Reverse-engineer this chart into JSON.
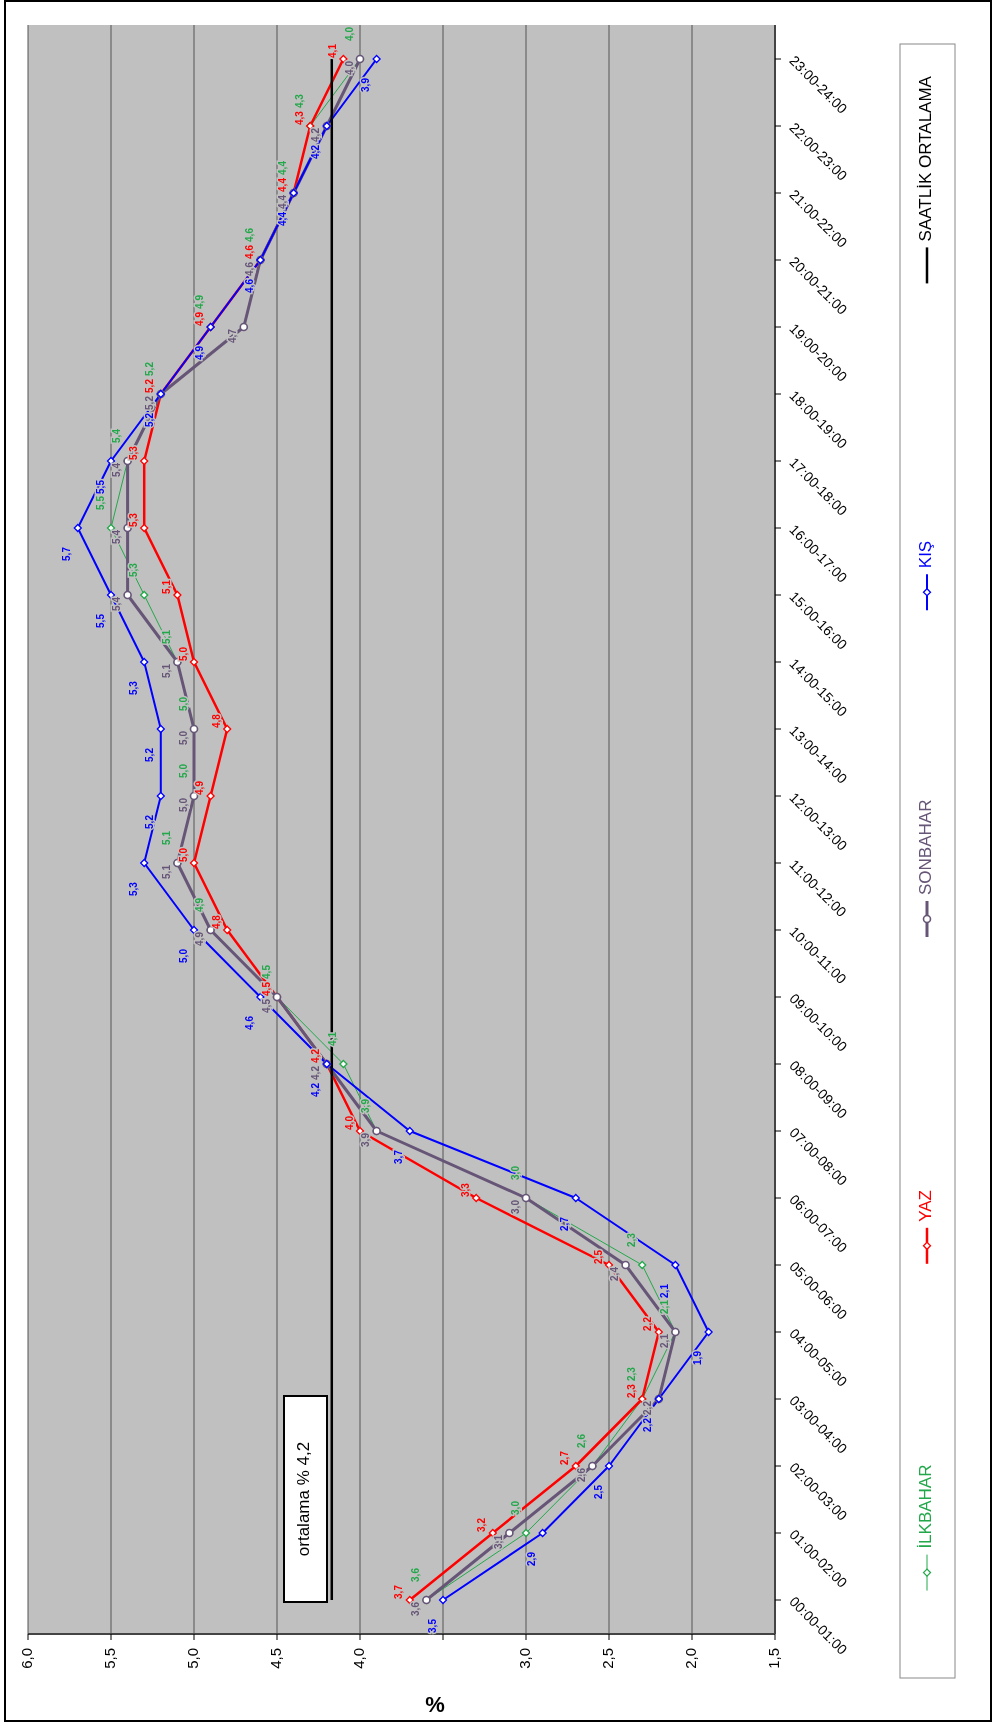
{
  "chart_data": {
    "type": "line",
    "orientation": "horizontal",
    "xlabel": "%",
    "categories": [
      "23:00-24:00",
      "22:00-23:00",
      "21:00-22:00",
      "20:00-21:00",
      "19:00-20:00",
      "18:00-19:00",
      "17:00-18:00",
      "16:00-17:00",
      "15:00-16:00",
      "14:00-15:00",
      "13:00-14:00",
      "12:00-13:00",
      "11:00-12:00",
      "10:00-11:00",
      "09:00-10:00",
      "08:00-09:00",
      "07:00-08:00",
      "06:00-07:00",
      "05:00-06:00",
      "04:00-05:00",
      "03:00-04:00",
      "02:00-03:00",
      "01:00-02:00",
      "00:00-01:00"
    ],
    "xlim": [
      6.0,
      1.5
    ],
    "xticks": [
      {
        "value": 6.0,
        "label": "6,0"
      },
      {
        "value": 5.5,
        "label": "5,5"
      },
      {
        "value": 5.0,
        "label": "5,0"
      },
      {
        "value": 4.5,
        "label": "4,5"
      },
      {
        "value": 4.0,
        "label": "4,0"
      },
      {
        "value": 3.5,
        "label": null
      },
      {
        "value": 3.0,
        "label": "3,0"
      },
      {
        "value": 2.5,
        "label": "2,5"
      },
      {
        "value": 2.0,
        "label": "2,0"
      },
      {
        "value": 1.5,
        "label": "1,5"
      }
    ],
    "grid": "x",
    "legend": "right",
    "annotations": [
      "ortalama % 4,2"
    ],
    "series": [
      {
        "name": "İLKBAHAR",
        "color": "#22a84a",
        "marker": "diamond",
        "values": [
          4.0,
          4.3,
          4.4,
          4.6,
          4.9,
          5.2,
          5.4,
          5.5,
          5.3,
          5.1,
          5.0,
          5.0,
          5.1,
          4.9,
          4.5,
          4.1,
          3.9,
          3.0,
          2.3,
          2.1,
          2.3,
          2.6,
          3.0,
          3.6
        ],
        "value_labels": [
          "4,0",
          "4,3",
          "4,4",
          "4,6",
          "4,9",
          "5,2",
          "5,4",
          "5,5",
          "5,3",
          "5,1",
          "5,0",
          "5,0",
          "5,1",
          "4,9",
          "4,5",
          "4,1",
          "3,9",
          "3,0",
          "2,3",
          "2,1",
          "2,3",
          "2,6",
          "3,0",
          "3,6"
        ]
      },
      {
        "name": "YAZ",
        "color": "#ff0000",
        "marker": "diamond",
        "values": [
          4.1,
          4.3,
          4.4,
          4.6,
          4.9,
          5.2,
          5.3,
          5.3,
          5.1,
          5.0,
          4.8,
          4.9,
          5.0,
          4.8,
          4.5,
          4.2,
          4.0,
          3.3,
          2.5,
          2.2,
          2.3,
          2.7,
          3.2,
          3.7
        ],
        "value_labels": [
          "4,1",
          "4,3",
          "4,4",
          "4,6",
          "4,9",
          "5,2",
          "5,3",
          "5,3",
          "5,1",
          "5,0",
          "4,8",
          "4,9",
          "5,0",
          "4,8",
          "4,5",
          "4,2",
          "4,0",
          "3,3",
          "2,5",
          "2,2",
          "2,3",
          "2,7",
          "3,2",
          "3,7"
        ]
      },
      {
        "name": "SONBAHAR",
        "color": "#665577",
        "marker": "circle",
        "values": [
          4.0,
          4.2,
          4.4,
          4.6,
          4.7,
          5.2,
          5.4,
          5.4,
          5.4,
          5.1,
          5.0,
          5.0,
          5.1,
          4.9,
          4.5,
          4.2,
          3.9,
          3.0,
          2.4,
          2.1,
          2.2,
          2.6,
          3.1,
          3.6
        ],
        "value_labels": [
          "4,0",
          "4,2",
          "4,4",
          "4,6",
          "4,7",
          "5,2",
          "5,4",
          "5,4",
          "5,4",
          "5,1",
          "5,0",
          "5,0",
          "5,1",
          "4,9",
          "4,5",
          "4,2",
          "3,9",
          "3,0",
          "2,4",
          "2,1",
          "2,2",
          "2,6",
          "3,1",
          "3,6"
        ]
      },
      {
        "name": "KIŞ",
        "color": "#0000ff",
        "marker": "diamond",
        "values": [
          3.9,
          4.2,
          4.4,
          4.6,
          4.9,
          5.2,
          5.5,
          5.7,
          5.5,
          5.3,
          5.2,
          5.2,
          5.3,
          5.0,
          4.6,
          4.2,
          3.7,
          2.7,
          2.1,
          1.9,
          2.2,
          2.5,
          2.9,
          3.5
        ],
        "value_labels": [
          "3,9",
          "4,2",
          "4,4",
          "4,6",
          "4,9",
          "5,2",
          "5,5",
          "5,7",
          "5,5",
          "5,3",
          "5,2",
          "5,2",
          "5,3",
          "5,0",
          "4,6",
          "4,2",
          "3,7",
          "2,7",
          "2,1",
          "1,9",
          "2,2",
          "2,5",
          "2,9",
          "3,5"
        ]
      },
      {
        "name": "SAATLİK ORTALAMA",
        "color": "#000000",
        "marker": "none",
        "values": [
          4.17,
          4.17,
          4.17,
          4.17,
          4.17,
          4.17,
          4.17,
          4.17,
          4.17,
          4.17,
          4.17,
          4.17,
          4.17,
          4.17,
          4.17,
          4.17,
          4.17,
          4.17,
          4.17,
          4.17,
          4.17,
          4.17,
          4.17,
          4.17
        ]
      }
    ]
  }
}
